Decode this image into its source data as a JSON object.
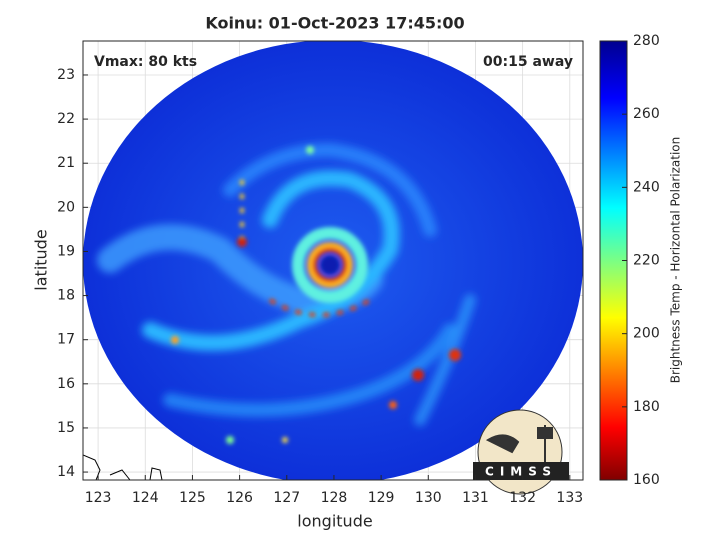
{
  "chart_data": {
    "type": "image",
    "title": "Koinu: 01-Oct-2023 17:45:00",
    "annotations": [
      "Vmax: 80 kts",
      "00:15 away"
    ],
    "xlabel": "longitude",
    "ylabel": "latitude",
    "xlim": [
      122.68,
      133.28
    ],
    "ylim": [
      13.82,
      23.77
    ],
    "xticks": [
      123,
      124,
      125,
      126,
      127,
      128,
      129,
      130,
      131,
      132,
      133
    ],
    "yticks": [
      14,
      15,
      16,
      17,
      18,
      19,
      20,
      21,
      22,
      23
    ],
    "grid": true,
    "colorbar": {
      "label": "Brightness Temp - Horizontal Polarization",
      "lim": [
        160,
        280
      ],
      "ticks": [
        160,
        180,
        200,
        220,
        240,
        260,
        280
      ]
    }
  },
  "logo": {
    "text": "CIMSS"
  }
}
